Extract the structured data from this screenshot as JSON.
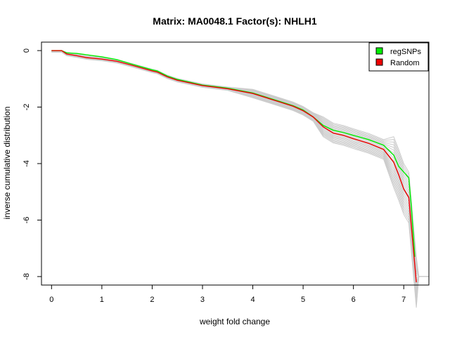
{
  "chart_data": {
    "type": "line",
    "title": "Matrix: MA0048.1 Factor(s): NHLH1",
    "xlabel": "weight fold change",
    "ylabel": "inverse cumulative distribution",
    "xlim": [
      -0.2,
      7.5
    ],
    "ylim": [
      -8.3,
      0.3
    ],
    "xticks": [
      0,
      1,
      2,
      3,
      4,
      5,
      6,
      7
    ],
    "yticks": [
      0,
      -2,
      -4,
      -6,
      -8
    ],
    "grid": false,
    "legend_position": "top-right",
    "series": [
      {
        "name": "regSNPs",
        "color": "#00ee00",
        "x": [
          0,
          0.2,
          0.3,
          0.5,
          0.7,
          1.0,
          1.3,
          1.6,
          2.0,
          2.1,
          2.3,
          2.5,
          3.0,
          3.5,
          4.0,
          4.5,
          4.8,
          5.0,
          5.2,
          5.4,
          5.6,
          5.8,
          6.0,
          6.3,
          6.6,
          6.8,
          6.9,
          7.1,
          7.15,
          7.22
        ],
        "y": [
          0,
          0,
          -0.08,
          -0.1,
          -0.15,
          -0.22,
          -0.32,
          -0.48,
          -0.68,
          -0.72,
          -0.9,
          -1.02,
          -1.22,
          -1.33,
          -1.5,
          -1.78,
          -1.95,
          -2.1,
          -2.35,
          -2.65,
          -2.82,
          -2.9,
          -3.0,
          -3.15,
          -3.35,
          -3.7,
          -4.1,
          -4.5,
          -5.5,
          -7.3
        ]
      },
      {
        "name": "Random",
        "color": "#ee0000",
        "x": [
          0,
          0.2,
          0.3,
          0.5,
          0.7,
          1.0,
          1.3,
          1.6,
          2.0,
          2.1,
          2.3,
          2.5,
          3.0,
          3.5,
          4.0,
          4.5,
          4.8,
          5.0,
          5.2,
          5.4,
          5.6,
          5.8,
          6.0,
          6.3,
          6.6,
          6.8,
          6.9,
          7.0,
          7.1,
          7.2,
          7.25
        ],
        "y": [
          0,
          0,
          -0.12,
          -0.18,
          -0.25,
          -0.3,
          -0.38,
          -0.52,
          -0.72,
          -0.76,
          -0.93,
          -1.05,
          -1.24,
          -1.35,
          -1.52,
          -1.8,
          -1.97,
          -2.13,
          -2.35,
          -2.7,
          -2.92,
          -3.0,
          -3.12,
          -3.28,
          -3.5,
          -3.95,
          -4.4,
          -4.9,
          -5.2,
          -7.2,
          -8.2
        ]
      }
    ],
    "background_series": {
      "color": "#cccccc",
      "count": 20,
      "description_note": "grey random-sample curves"
    }
  }
}
